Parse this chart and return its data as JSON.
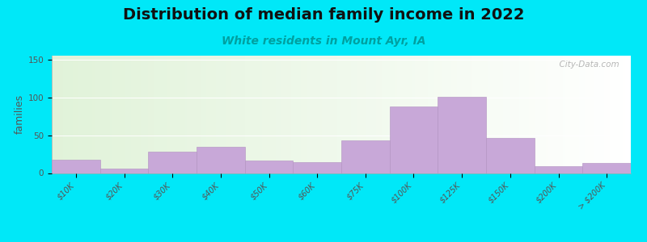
{
  "title": "Distribution of median family income in 2022",
  "subtitle": "White residents in Mount Ayr, IA",
  "ylabel": "families",
  "categories": [
    "$10K",
    "$20K",
    "$30K",
    "$40K",
    "$50K",
    "$60K",
    "$75K",
    "$100K",
    "$125K",
    "$150K",
    "$200K",
    "> $200K"
  ],
  "values": [
    18,
    6,
    28,
    35,
    17,
    14,
    43,
    88,
    101,
    46,
    9,
    13
  ],
  "bar_color": "#c8a8d8",
  "bar_edge_color": "#b090c0",
  "background_outer": "#00e8f8",
  "title_fontsize": 14,
  "subtitle_fontsize": 10,
  "subtitle_color": "#00a0a0",
  "ylabel_fontsize": 9,
  "tick_fontsize": 7,
  "yticks": [
    0,
    50,
    100,
    150
  ],
  "ylim": [
    0,
    155
  ],
  "watermark": "  City-Data.com",
  "xlim": [
    -0.5,
    11.5
  ]
}
